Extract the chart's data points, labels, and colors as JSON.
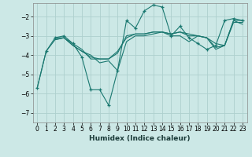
{
  "xlabel": "Humidex (Indice chaleur)",
  "background_color": "#cce8e6",
  "grid_color": "#aed0ce",
  "line_color": "#1a7870",
  "xlim": [
    -0.5,
    23.5
  ],
  "ylim": [
    -7.5,
    -1.3
  ],
  "yticks": [
    -7,
    -6,
    -5,
    -4,
    -3,
    -2
  ],
  "xticks": [
    0,
    1,
    2,
    3,
    4,
    5,
    6,
    7,
    8,
    9,
    10,
    11,
    12,
    13,
    14,
    15,
    16,
    17,
    18,
    19,
    20,
    21,
    22,
    23
  ],
  "line1_x": [
    0,
    1,
    2,
    3,
    4,
    5,
    6,
    7,
    8,
    9,
    10,
    11,
    12,
    13,
    14,
    15,
    16,
    17,
    18,
    19,
    20,
    21,
    22,
    23
  ],
  "line1_y": [
    -5.7,
    -3.8,
    -3.1,
    -3.0,
    -3.4,
    -4.1,
    -5.8,
    -5.8,
    -6.6,
    -4.8,
    -2.2,
    -2.6,
    -1.7,
    -1.4,
    -1.5,
    -3.0,
    -2.5,
    -3.1,
    -3.4,
    -3.7,
    -3.5,
    -2.2,
    -2.1,
    -2.2
  ],
  "line2_x": [
    0,
    1,
    2,
    3,
    4,
    5,
    6,
    7,
    8,
    9,
    10,
    11,
    12,
    13,
    14,
    15,
    16,
    17,
    18,
    19,
    20,
    21,
    22,
    23
  ],
  "line2_y": [
    -5.7,
    -3.8,
    -3.2,
    -3.1,
    -3.5,
    -3.8,
    -4.1,
    -4.2,
    -4.2,
    -3.9,
    -3.0,
    -2.9,
    -2.9,
    -2.8,
    -2.8,
    -2.9,
    -2.8,
    -3.0,
    -3.0,
    -3.1,
    -3.4,
    -3.5,
    -2.2,
    -2.2
  ],
  "line3_x": [
    2,
    3,
    4,
    5,
    6,
    7,
    8,
    9,
    10,
    11,
    12,
    13,
    14,
    15,
    16,
    17,
    18,
    19,
    20,
    21,
    22,
    23
  ],
  "line3_y": [
    -3.1,
    -3.1,
    -3.4,
    -3.7,
    -4.2,
    -4.2,
    -4.2,
    -3.8,
    -3.1,
    -2.9,
    -2.9,
    -2.8,
    -2.8,
    -2.9,
    -2.8,
    -2.9,
    -3.0,
    -3.1,
    -3.6,
    -3.5,
    -2.3,
    -2.3
  ],
  "line4_x": [
    2,
    3,
    4,
    5,
    6,
    7,
    8,
    9,
    10,
    11,
    12,
    13,
    14,
    15,
    16,
    17,
    18,
    19,
    20,
    21,
    22,
    23
  ],
  "line4_y": [
    -3.2,
    -3.1,
    -3.5,
    -3.8,
    -4.0,
    -4.4,
    -4.3,
    -4.8,
    -3.3,
    -3.0,
    -3.0,
    -2.9,
    -2.8,
    -3.0,
    -3.0,
    -3.3,
    -3.0,
    -3.1,
    -3.7,
    -3.5,
    -2.2,
    -2.4
  ]
}
